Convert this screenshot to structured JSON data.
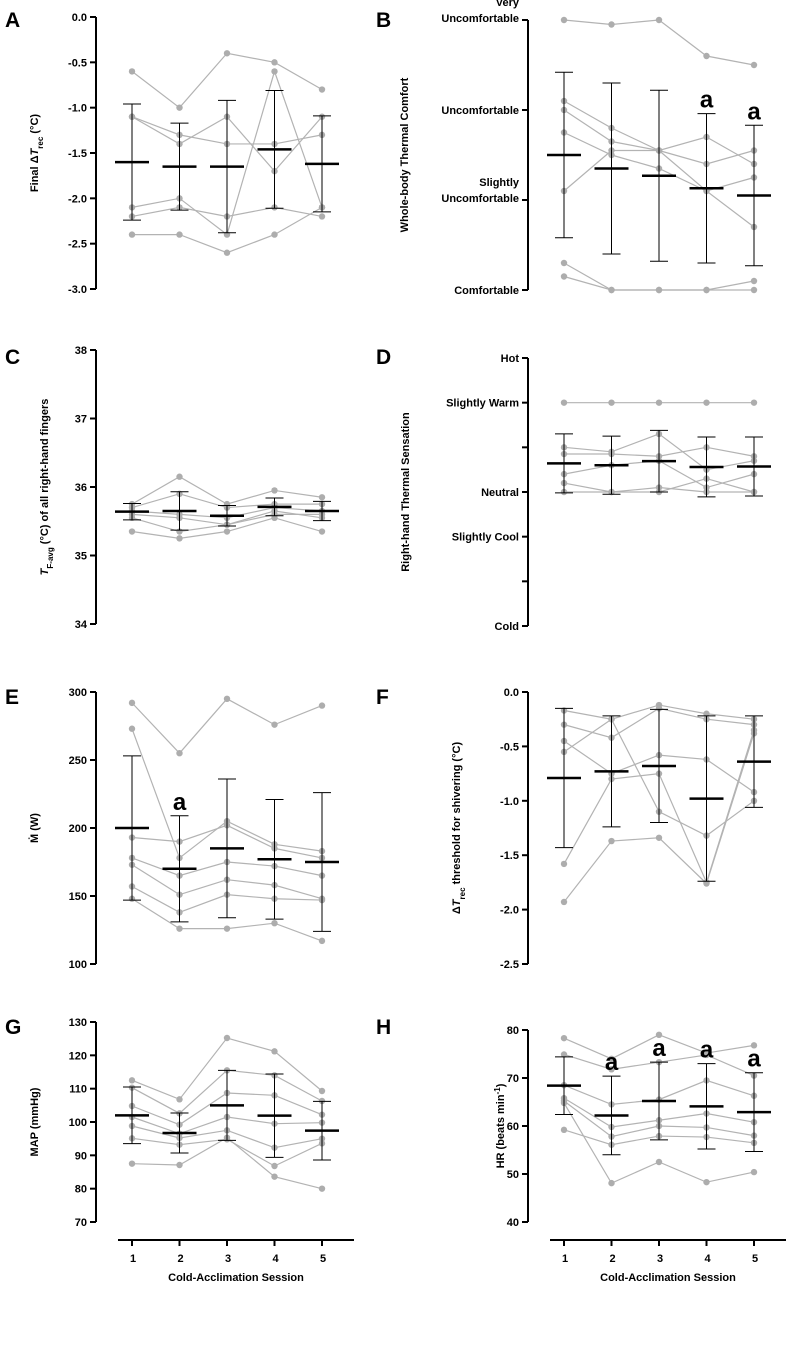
{
  "figure": {
    "xlabel": "Cold-Acclimation Session",
    "sessions": [
      "1",
      "2",
      "3",
      "4",
      "5"
    ]
  },
  "chart_data": [
    {
      "panel": "A",
      "type": "scatter",
      "ylabel": "Final ΔT_rec (°C)",
      "ylabel_main": "Final Δ",
      "ylabel_sym": "T",
      "ylabel_sub": "rec",
      "ylabel_end": " (°C)",
      "ylim": [
        -3.0,
        0.0
      ],
      "yticks": [
        "0.0",
        "-0.5",
        "-1.0",
        "-1.5",
        "-2.0",
        "-2.5",
        "-3.0"
      ],
      "ytick_values": [
        0,
        -0.5,
        -1.0,
        -1.5,
        -2.0,
        -2.5,
        -3.0
      ],
      "means": [
        -1.6,
        -1.65,
        -1.65,
        -1.46,
        -1.62
      ],
      "sd": [
        0.64,
        0.48,
        0.73,
        0.65,
        0.53
      ],
      "series": [
        {
          "name": "P1",
          "values": [
            -0.6,
            -1.0,
            -0.4,
            -0.5,
            -0.8
          ]
        },
        {
          "name": "P2",
          "values": [
            -1.1,
            -1.4,
            -1.1,
            -1.7,
            -1.1
          ]
        },
        {
          "name": "P3",
          "values": [
            -1.1,
            -1.3,
            -1.4,
            -1.4,
            -1.3
          ]
        },
        {
          "name": "P4",
          "values": [
            -2.1,
            -2.0,
            -2.4,
            -0.6,
            -2.1
          ]
        },
        {
          "name": "P5",
          "values": [
            -2.2,
            -2.1,
            -2.2,
            -2.1,
            -2.2
          ]
        },
        {
          "name": "P6",
          "values": [
            -2.4,
            -2.4,
            -2.6,
            -2.4,
            -2.1
          ]
        }
      ],
      "annotations": []
    },
    {
      "panel": "B",
      "type": "scatter",
      "ylabel": "Whole-body Thermal Comfort",
      "ylim": [
        1,
        4
      ],
      "yticks": [
        "Very Uncomfortable",
        "Uncomfortable",
        "Slightly Uncomfortable",
        "Comfortable"
      ],
      "ytick_values": [
        4,
        3,
        2,
        1
      ],
      "means": [
        2.5,
        2.35,
        2.27,
        2.13,
        2.05
      ],
      "sd": [
        0.92,
        0.95,
        0.95,
        0.83,
        0.78
      ],
      "series": [
        {
          "name": "P1",
          "values": [
            4.0,
            3.95,
            4.0,
            3.6,
            3.5
          ]
        },
        {
          "name": "P2",
          "values": [
            3.1,
            2.8,
            2.55,
            2.4,
            2.55
          ]
        },
        {
          "name": "P3",
          "values": [
            3.0,
            2.65,
            2.55,
            2.7,
            2.4
          ]
        },
        {
          "name": "P4",
          "values": [
            2.75,
            2.5,
            2.35,
            2.1,
            1.7
          ]
        },
        {
          "name": "P5",
          "values": [
            2.1,
            2.55,
            2.55,
            2.1,
            2.25
          ]
        },
        {
          "name": "P6",
          "values": [
            1.3,
            1.0,
            1.0,
            1.0,
            1.1
          ]
        },
        {
          "name": "P7",
          "values": [
            1.15,
            1.0,
            1.0,
            1.0,
            1.0
          ]
        }
      ],
      "annotations": [
        {
          "session": "4",
          "text": "a"
        },
        {
          "session": "5",
          "text": "a"
        }
      ]
    },
    {
      "panel": "C",
      "type": "scatter",
      "ylabel": "T_F-avg (°C) of all right-hand fingers",
      "ylabel_sym": "T",
      "ylabel_sub": "F-avg",
      "ylabel_end": " (°C) of all right-hand fingers",
      "ylim": [
        34,
        38
      ],
      "yticks": [
        "38",
        "37",
        "36",
        "35",
        "34"
      ],
      "ytick_values": [
        38,
        37,
        36,
        35,
        34
      ],
      "means": [
        35.64,
        35.65,
        35.58,
        35.71,
        35.65
      ],
      "sd": [
        0.12,
        0.28,
        0.15,
        0.13,
        0.14
      ],
      "series": [
        {
          "name": "P1",
          "values": [
            35.75,
            36.15,
            35.75,
            35.95,
            35.85
          ]
        },
        {
          "name": "P2",
          "values": [
            35.7,
            35.9,
            35.7,
            35.75,
            35.75
          ]
        },
        {
          "name": "P3",
          "values": [
            35.65,
            35.6,
            35.55,
            35.7,
            35.65
          ]
        },
        {
          "name": "P4",
          "values": [
            35.6,
            35.55,
            35.45,
            35.65,
            35.55
          ]
        },
        {
          "name": "P5",
          "values": [
            35.55,
            35.35,
            35.45,
            35.6,
            35.6
          ]
        },
        {
          "name": "P6",
          "values": [
            35.35,
            35.25,
            35.35,
            35.55,
            35.35
          ]
        }
      ],
      "annotations": []
    },
    {
      "panel": "D",
      "type": "scatter",
      "ylabel": "Right-hand Thermal Sensation",
      "ylim": [
        -3,
        3
      ],
      "yticks": [
        "Hot",
        "Slightly Warm",
        "Neutral",
        "Slightly Cool",
        "Cold"
      ],
      "ytick_values": [
        3,
        2,
        0,
        -1,
        -3
      ],
      "minor_ticks": [
        1,
        -2
      ],
      "means": [
        0.64,
        0.6,
        0.69,
        0.56,
        0.57
      ],
      "sd": [
        0.66,
        0.65,
        0.69,
        0.67,
        0.66
      ],
      "series": [
        {
          "name": "P1",
          "values": [
            2.0,
            2.0,
            2.0,
            2.0,
            2.0
          ]
        },
        {
          "name": "P2",
          "values": [
            1.0,
            0.9,
            1.3,
            0.5,
            0.7
          ]
        },
        {
          "name": "P3",
          "values": [
            0.85,
            0.85,
            0.8,
            1.0,
            0.8
          ]
        },
        {
          "name": "P4",
          "values": [
            0.4,
            0.6,
            0.7,
            0.1,
            0.4
          ]
        },
        {
          "name": "P5",
          "values": [
            0.2,
            0.0,
            0.0,
            0.3,
            0.0
          ]
        },
        {
          "name": "P6",
          "values": [
            0.0,
            0.0,
            0.1,
            0.0,
            0.0
          ]
        }
      ],
      "annotations": []
    },
    {
      "panel": "E",
      "type": "scatter",
      "ylabel": "Ṁ (W)",
      "ylabel_main": "Ṁ",
      "ylabel_end": " (W)",
      "ylim": [
        100,
        300
      ],
      "yticks": [
        "300",
        "250",
        "200",
        "150",
        "100"
      ],
      "ytick_values": [
        300,
        250,
        200,
        150,
        100
      ],
      "means": [
        200,
        170,
        185,
        177,
        175
      ],
      "sd": [
        53,
        39,
        51,
        44,
        51
      ],
      "series": [
        {
          "name": "P1",
          "values": [
            292,
            255,
            295,
            276,
            290
          ]
        },
        {
          "name": "P2",
          "values": [
            273,
            178,
            205,
            188,
            183
          ]
        },
        {
          "name": "P3",
          "values": [
            193,
            190,
            202,
            185,
            178
          ]
        },
        {
          "name": "P4",
          "values": [
            178,
            165,
            175,
            172,
            165
          ]
        },
        {
          "name": "P5",
          "values": [
            173,
            151,
            162,
            158,
            148
          ]
        },
        {
          "name": "P6",
          "values": [
            157,
            138,
            151,
            148,
            147
          ]
        },
        {
          "name": "P7",
          "values": [
            148,
            126,
            126,
            130,
            117
          ]
        }
      ],
      "annotations": [
        {
          "session": "2",
          "text": "a"
        }
      ]
    },
    {
      "panel": "F",
      "type": "scatter",
      "ylabel": "ΔT_rec threshold for shivering (°C)",
      "ylabel_main": "Δ",
      "ylabel_sym": "T",
      "ylabel_sub": "rec",
      "ylabel_end": " threshold for shivering (°C)",
      "ylim": [
        -2.5,
        0.0
      ],
      "yticks": [
        "0.0",
        "-0.5",
        "-1.0",
        "-1.5",
        "-2.0",
        "-2.5"
      ],
      "ytick_values": [
        0,
        -0.5,
        -1.0,
        -1.5,
        -2.0,
        -2.5
      ],
      "means": [
        -0.79,
        -0.73,
        -0.68,
        -0.98,
        -0.64
      ],
      "sd": [
        0.64,
        0.51,
        0.52,
        0.76,
        0.42
      ],
      "series": [
        {
          "name": "P1",
          "values": [
            -0.17,
            -0.25,
            -0.12,
            -0.2,
            -0.25
          ]
        },
        {
          "name": "P2",
          "values": [
            -0.3,
            -0.42,
            -0.15,
            -0.25,
            -0.3
          ]
        },
        {
          "name": "P3",
          "values": [
            -0.45,
            -0.75,
            -0.58,
            -0.62,
            -0.92
          ]
        },
        {
          "name": "P4",
          "values": [
            -0.55,
            -0.25,
            -1.1,
            -1.32,
            -1.0
          ]
        },
        {
          "name": "P5",
          "values": [
            -1.58,
            -0.8,
            -0.75,
            -1.75,
            -0.35
          ]
        },
        {
          "name": "P6",
          "values": [
            -1.93,
            -1.37,
            -1.34,
            -1.76,
            -0.38
          ]
        }
      ],
      "annotations": []
    },
    {
      "panel": "G",
      "type": "scatter",
      "ylabel": "MAP (mmHg)",
      "ylim": [
        70,
        130
      ],
      "yticks": [
        "130",
        "120",
        "110",
        "100",
        "90",
        "80",
        "70"
      ],
      "ytick_values": [
        130,
        120,
        110,
        100,
        90,
        80,
        70
      ],
      "means": [
        102,
        96.7,
        105,
        101.9,
        97.4
      ],
      "sd": [
        8.5,
        6.0,
        10.5,
        12.5,
        8.8
      ],
      "series": [
        {
          "name": "P1",
          "values": [
            112.5,
            106.8,
            125.2,
            121.2,
            109.3
          ]
        },
        {
          "name": "P2",
          "values": [
            110.3,
            102.6,
            115.5,
            114,
            106.3
          ]
        },
        {
          "name": "P3",
          "values": [
            104.8,
            99.2,
            108.7,
            108,
            102.2
          ]
        },
        {
          "name": "P4",
          "values": [
            101.5,
            96.5,
            101.5,
            99.5,
            99.8
          ]
        },
        {
          "name": "P5",
          "values": [
            98.8,
            95.2,
            97.5,
            92.3,
            95
          ]
        },
        {
          "name": "P6",
          "values": [
            95.1,
            93.2,
            94.8,
            86.8,
            93.6
          ]
        },
        {
          "name": "P7",
          "values": [
            87.5,
            87.1,
            95.3,
            83.6,
            80
          ]
        }
      ],
      "annotations": []
    },
    {
      "panel": "H",
      "type": "scatter",
      "ylabel": "HR (beats min⁻¹)",
      "ylabel_main": "HR (beats min",
      "ylabel_sup": "-1",
      "ylabel_end": ")",
      "ylim": [
        40,
        80
      ],
      "yticks": [
        "80",
        "70",
        "60",
        "50",
        "40"
      ],
      "ytick_values": [
        80,
        70,
        60,
        50,
        40
      ],
      "means": [
        68.4,
        62.2,
        65.2,
        64.1,
        62.9
      ],
      "sd": [
        6.0,
        8.2,
        8.1,
        8.9,
        8.2
      ],
      "series": [
        {
          "name": "P1",
          "values": [
            78.3,
            74.0,
            79.0,
            75.2,
            76.8
          ]
        },
        {
          "name": "P2",
          "values": [
            74.9,
            71.8,
            73.3,
            74.8,
            70.5
          ]
        },
        {
          "name": "P3",
          "values": [
            68.5,
            64.5,
            65.5,
            69.5,
            66.3
          ]
        },
        {
          "name": "P4",
          "values": [
            65.8,
            59.8,
            61.2,
            62.6,
            60.8
          ]
        },
        {
          "name": "P5",
          "values": [
            65.2,
            57.8,
            60.0,
            59.7,
            58.0
          ]
        },
        {
          "name": "P6",
          "values": [
            59.2,
            56.1,
            57.9,
            57.7,
            56.5
          ]
        },
        {
          "name": "P7",
          "values": [
            64.8,
            48.1,
            52.5,
            48.3,
            50.4
          ]
        }
      ],
      "annotations": [
        {
          "session": "2",
          "text": "a"
        },
        {
          "session": "3",
          "text": "a"
        },
        {
          "session": "4",
          "text": "a"
        },
        {
          "session": "5",
          "text": "a"
        }
      ]
    }
  ]
}
